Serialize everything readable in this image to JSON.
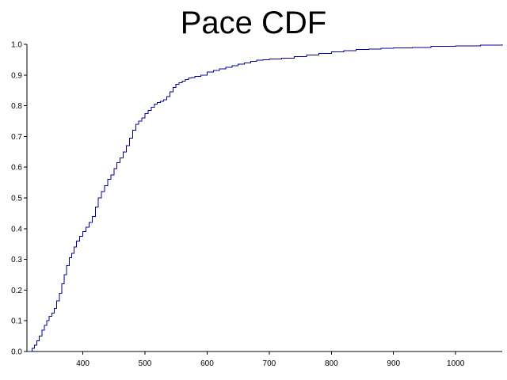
{
  "chart_data": {
    "type": "line",
    "title": "Pace CDF",
    "xlabel": "",
    "ylabel": "",
    "xlim": [
      310,
      1075
    ],
    "ylim": [
      0,
      1
    ],
    "grid": false,
    "color": "#00009c",
    "x_ticks": [
      400,
      500,
      600,
      700,
      800,
      900,
      1000
    ],
    "x_tick_labels": [
      "400",
      "500",
      "600",
      "700",
      "800",
      "900",
      "1000"
    ],
    "y_ticks": [
      0.0,
      0.1,
      0.2,
      0.3,
      0.4,
      0.5,
      0.6,
      0.7,
      0.8,
      0.9,
      1.0
    ],
    "y_tick_labels": [
      "0.0",
      "0.1",
      "0.2",
      "0.3",
      "0.4",
      "0.5",
      "0.6",
      "0.7",
      "0.8",
      "0.9",
      "1.0"
    ],
    "series": [
      {
        "x": [
          310,
          318,
          322,
          326,
          330,
          334,
          338,
          342,
          346,
          350,
          354,
          358,
          362,
          366,
          370,
          374,
          378,
          382,
          386,
          390,
          395,
          400,
          405,
          410,
          415,
          420,
          425,
          430,
          435,
          440,
          445,
          450,
          455,
          460,
          465,
          470,
          475,
          480,
          485,
          490,
          495,
          500,
          505,
          510,
          515,
          520,
          525,
          530,
          535,
          540,
          545,
          550,
          555,
          560,
          565,
          570,
          575,
          580,
          590,
          600,
          610,
          620,
          630,
          640,
          650,
          660,
          670,
          680,
          690,
          700,
          720,
          740,
          760,
          780,
          800,
          820,
          840,
          860,
          880,
          900,
          930,
          960,
          1000,
          1040,
          1075
        ],
        "y": [
          0.0,
          0.01,
          0.02,
          0.035,
          0.05,
          0.07,
          0.085,
          0.1,
          0.115,
          0.125,
          0.14,
          0.165,
          0.19,
          0.22,
          0.25,
          0.28,
          0.305,
          0.32,
          0.34,
          0.36,
          0.375,
          0.39,
          0.405,
          0.42,
          0.44,
          0.47,
          0.5,
          0.52,
          0.54,
          0.56,
          0.575,
          0.595,
          0.615,
          0.63,
          0.65,
          0.67,
          0.695,
          0.72,
          0.74,
          0.75,
          0.76,
          0.775,
          0.785,
          0.795,
          0.805,
          0.81,
          0.815,
          0.82,
          0.83,
          0.845,
          0.86,
          0.87,
          0.875,
          0.88,
          0.885,
          0.89,
          0.892,
          0.895,
          0.9,
          0.91,
          0.915,
          0.92,
          0.925,
          0.93,
          0.935,
          0.94,
          0.945,
          0.948,
          0.95,
          0.952,
          0.955,
          0.96,
          0.965,
          0.97,
          0.975,
          0.98,
          0.983,
          0.985,
          0.987,
          0.988,
          0.99,
          0.993,
          0.995,
          0.997,
          1.0
        ]
      }
    ]
  }
}
